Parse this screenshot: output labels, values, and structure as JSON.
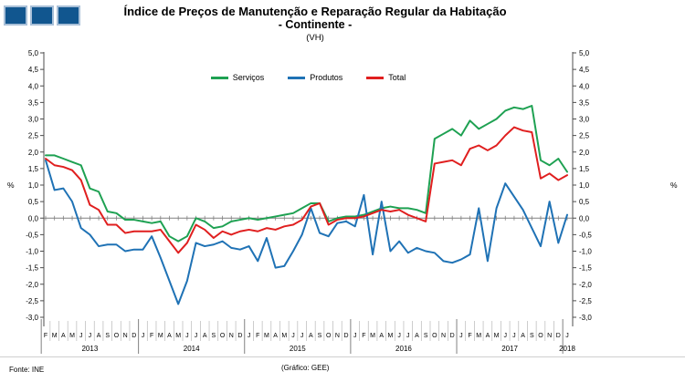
{
  "header": {
    "title_line1": "Índice de Preços de Manutenção e Reparação Regular da Habitação",
    "title_line2": "- Continente -",
    "subtitle": "(VH)"
  },
  "branding": {
    "squares_color": "#11568F",
    "squares_border": "#A9C0D8",
    "square_count": 3
  },
  "footer": {
    "source": "Fonte: INE",
    "credit": "(Gráfico: GEE)"
  },
  "chart_data": {
    "type": "line",
    "unit_label": "%",
    "ylim": [
      -3.0,
      5.0
    ],
    "ytick_step": 0.5,
    "ytick_labels": [
      "5,0",
      "4,5",
      "4,0",
      "3,5",
      "3,0",
      "2,5",
      "2,0",
      "1,5",
      "1,0",
      "0,5",
      "0,0",
      "-0,5",
      "-1,0",
      "-1,5",
      "-2,0",
      "-2,5",
      "-3,0"
    ],
    "grid": "zero-line-only",
    "legend_position": "top-center",
    "axis_color": "#4d4d4d",
    "zero_line_color": "#808080",
    "month_separator_color": "#b8b8b8",
    "x_months": [
      "F",
      "M",
      "A",
      "M",
      "J",
      "J",
      "A",
      "S",
      "O",
      "N",
      "D",
      "J",
      "F",
      "M",
      "A",
      "M",
      "J",
      "J",
      "A",
      "S",
      "O",
      "N",
      "D",
      "J",
      "F",
      "M",
      "A",
      "M",
      "J",
      "J",
      "A",
      "S",
      "O",
      "N",
      "D",
      "J",
      "F",
      "M",
      "A",
      "M",
      "J",
      "J",
      "A",
      "S",
      "O",
      "N",
      "D",
      "J",
      "F",
      "M",
      "A",
      "M",
      "J",
      "J",
      "A",
      "S",
      "O",
      "N",
      "D",
      "J"
    ],
    "years": [
      {
        "label": "2013",
        "start": 0,
        "count": 11
      },
      {
        "label": "2014",
        "start": 11,
        "count": 12
      },
      {
        "label": "2015",
        "start": 23,
        "count": 12
      },
      {
        "label": "2016",
        "start": 35,
        "count": 12
      },
      {
        "label": "2017",
        "start": 47,
        "count": 12
      },
      {
        "label": "2018",
        "start": 59,
        "count": 1
      }
    ],
    "series": [
      {
        "name": "Serviços",
        "color": "#1EA152",
        "values": [
          1.9,
          1.9,
          1.8,
          1.7,
          1.6,
          0.9,
          0.8,
          0.2,
          0.15,
          -0.05,
          -0.05,
          -0.1,
          -0.15,
          -0.1,
          -0.55,
          -0.7,
          -0.55,
          0.0,
          -0.1,
          -0.3,
          -0.25,
          -0.1,
          -0.05,
          0.0,
          -0.05,
          0.0,
          0.05,
          0.1,
          0.15,
          0.3,
          0.45,
          0.45,
          -0.1,
          0.0,
          0.05,
          0.05,
          0.1,
          0.2,
          0.3,
          0.35,
          0.3,
          0.3,
          0.25,
          0.15,
          2.4,
          2.55,
          2.7,
          2.5,
          2.95,
          2.7,
          2.85,
          3.0,
          3.25,
          3.35,
          3.3,
          3.4,
          1.75,
          1.6,
          1.8,
          1.4
        ]
      },
      {
        "name": "Produtos",
        "color": "#1F72B5",
        "values": [
          1.75,
          0.85,
          0.9,
          0.5,
          -0.3,
          -0.5,
          -0.85,
          -0.8,
          -0.8,
          -1.0,
          -0.95,
          -0.95,
          -0.55,
          -1.2,
          -1.9,
          -2.6,
          -1.9,
          -0.75,
          -0.85,
          -0.8,
          -0.7,
          -0.9,
          -0.95,
          -0.85,
          -1.3,
          -0.6,
          -1.5,
          -1.45,
          -1.0,
          -0.5,
          0.3,
          -0.45,
          -0.55,
          -0.15,
          -0.1,
          -0.25,
          0.7,
          -1.1,
          0.5,
          -1.0,
          -0.7,
          -1.05,
          -0.9,
          -1.0,
          -1.05,
          -1.3,
          -1.35,
          -1.25,
          -1.1,
          0.3,
          -1.3,
          0.3,
          1.05,
          0.65,
          0.25,
          -0.3,
          -0.85,
          0.5,
          -0.75,
          0.1
        ]
      },
      {
        "name": "Total",
        "color": "#E01F1F",
        "values": [
          1.8,
          1.6,
          1.55,
          1.45,
          1.15,
          0.4,
          0.25,
          -0.2,
          -0.2,
          -0.45,
          -0.4,
          -0.4,
          -0.4,
          -0.35,
          -0.7,
          -1.05,
          -0.75,
          -0.2,
          -0.35,
          -0.6,
          -0.4,
          -0.5,
          -0.4,
          -0.35,
          -0.4,
          -0.3,
          -0.35,
          -0.25,
          -0.2,
          -0.05,
          0.35,
          0.45,
          -0.2,
          -0.05,
          0.0,
          0.0,
          0.05,
          0.15,
          0.25,
          0.2,
          0.25,
          0.1,
          0.0,
          -0.1,
          1.65,
          1.7,
          1.75,
          1.6,
          2.1,
          2.2,
          2.05,
          2.2,
          2.5,
          2.75,
          2.65,
          2.6,
          1.2,
          1.35,
          1.15,
          1.3
        ]
      }
    ]
  }
}
